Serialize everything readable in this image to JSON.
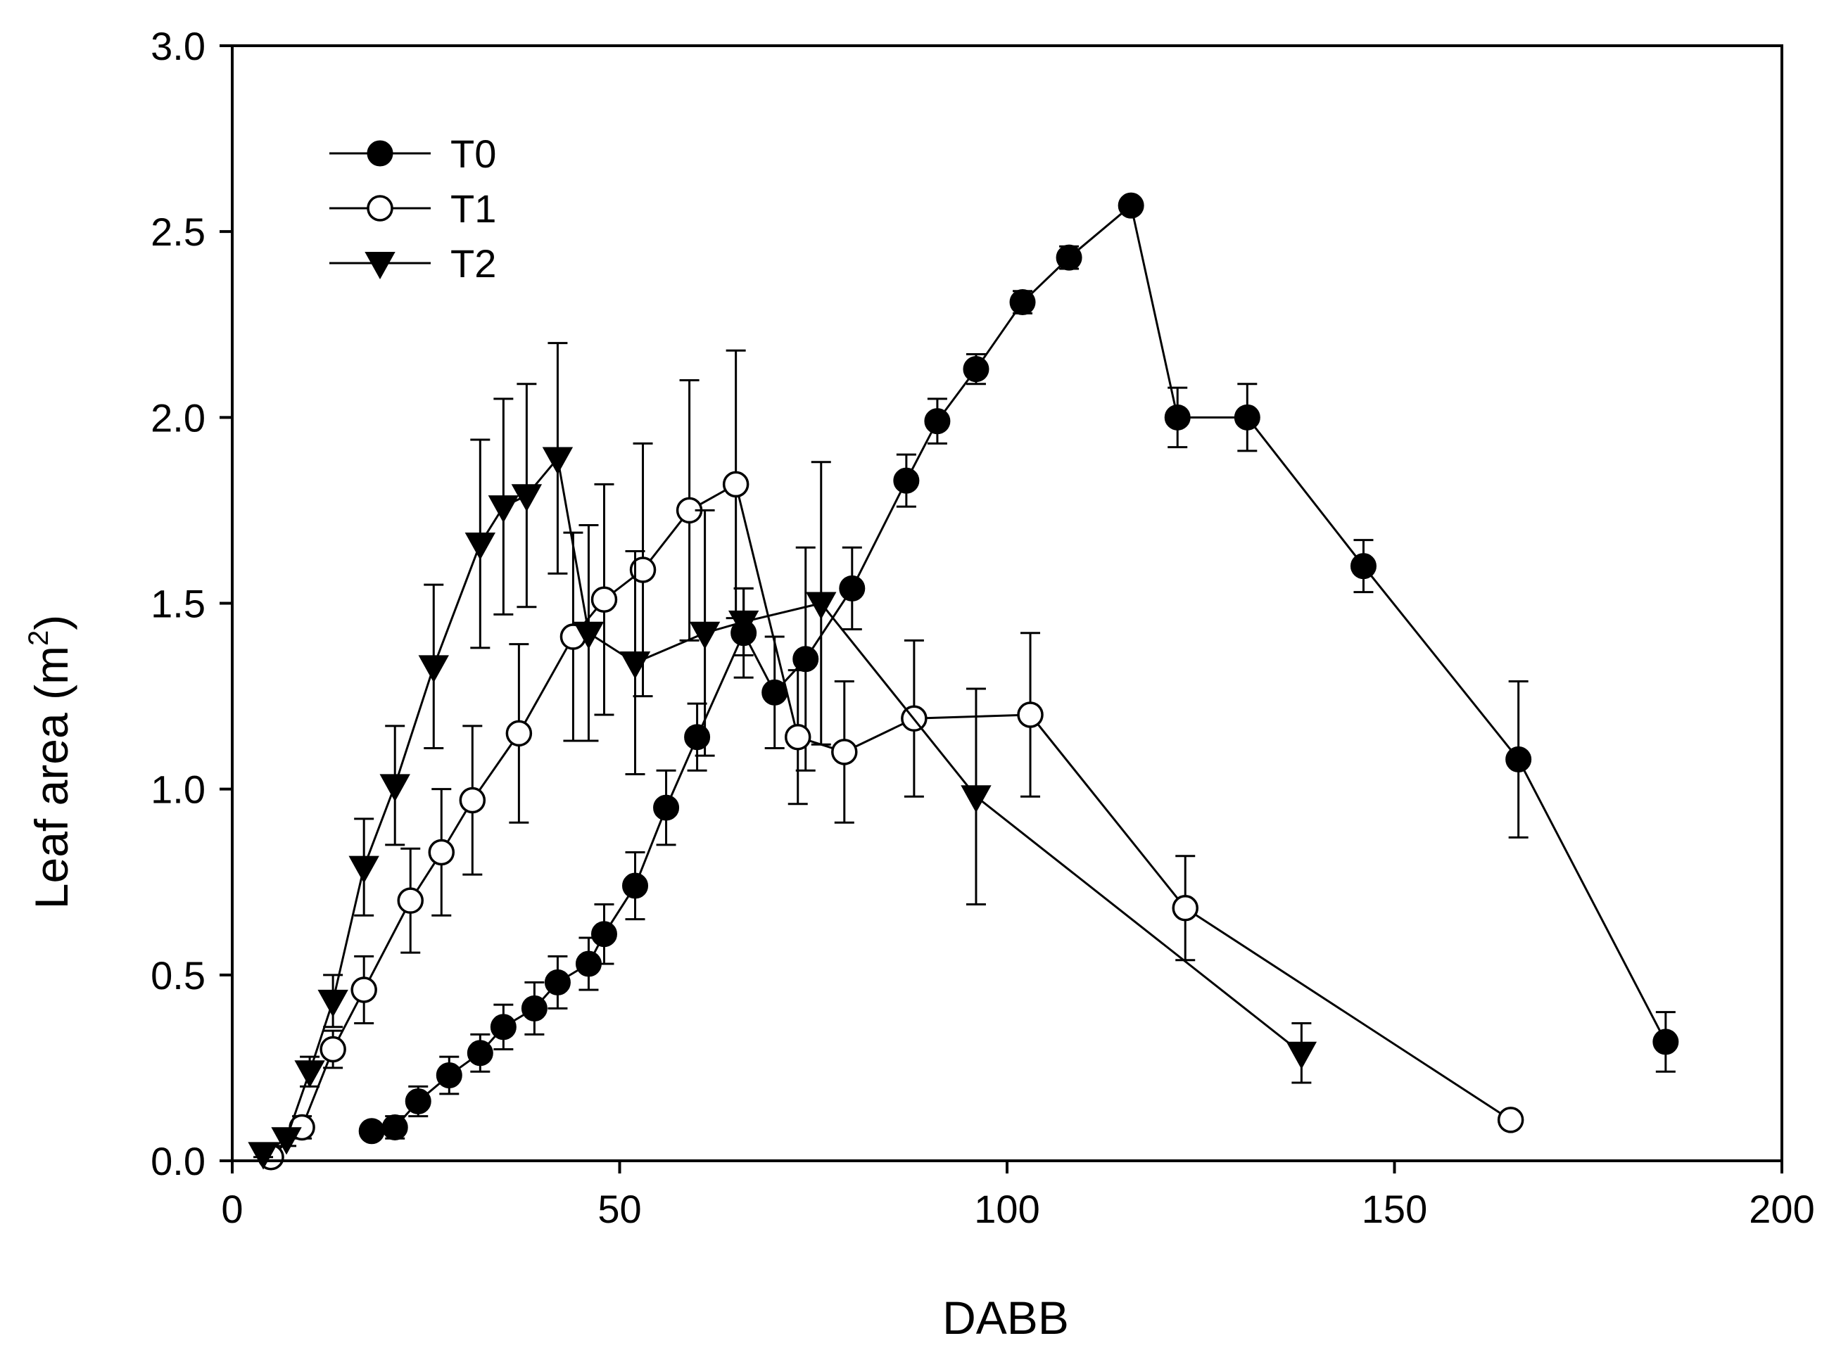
{
  "chart_data": {
    "type": "line",
    "title": "",
    "xlabel": "DABB",
    "ylabel": "Leaf area (m",
    "ylabel_superscript": "2",
    "ylabel_suffix": ")",
    "xlim": [
      0,
      200
    ],
    "ylim": [
      0.0,
      3.0
    ],
    "x_ticks": [
      0,
      50,
      100,
      150,
      200
    ],
    "x_tick_labels": [
      "0",
      "50",
      "100",
      "150",
      "200"
    ],
    "y_ticks": [
      0.0,
      0.5,
      1.0,
      1.5,
      2.0,
      2.5,
      3.0
    ],
    "y_tick_labels": [
      "0.0",
      "0.5",
      "1.0",
      "1.5",
      "2.0",
      "2.5",
      "3.0"
    ],
    "grid": false,
    "legend_position": "top-left",
    "series": [
      {
        "name": "T0",
        "marker": "filled-circle",
        "x": [
          18,
          21,
          24,
          28,
          32,
          35,
          39,
          42,
          46,
          48,
          52,
          56,
          60,
          66,
          70,
          74,
          80,
          87,
          91,
          96,
          102,
          108,
          116,
          122,
          131,
          146,
          166,
          185
        ],
        "y": [
          0.08,
          0.09,
          0.16,
          0.23,
          0.29,
          0.36,
          0.41,
          0.48,
          0.53,
          0.61,
          0.74,
          0.95,
          1.14,
          1.42,
          1.26,
          1.35,
          1.54,
          1.83,
          1.99,
          2.13,
          2.31,
          2.43,
          2.57,
          2.0,
          2.0,
          1.6,
          1.08,
          0.32
        ],
        "err": [
          0.02,
          0.03,
          0.04,
          0.05,
          0.05,
          0.06,
          0.07,
          0.07,
          0.07,
          0.08,
          0.09,
          0.1,
          0.09,
          0.12,
          0.15,
          0.3,
          0.11,
          0.07,
          0.06,
          0.04,
          0.03,
          0.03,
          0.02,
          0.08,
          0.09,
          0.07,
          0.21,
          0.08
        ]
      },
      {
        "name": "T1",
        "marker": "open-circle",
        "x": [
          5,
          9,
          13,
          17,
          23,
          27,
          31,
          37,
          44,
          48,
          53,
          59,
          65,
          73,
          79,
          88,
          103,
          123,
          165
        ],
        "y": [
          0.01,
          0.09,
          0.3,
          0.46,
          0.7,
          0.83,
          0.97,
          1.15,
          1.41,
          1.51,
          1.59,
          1.75,
          1.82,
          1.14,
          1.1,
          1.19,
          1.2,
          0.68,
          0.11
        ],
        "err": [
          0.01,
          0.03,
          0.05,
          0.09,
          0.14,
          0.17,
          0.2,
          0.24,
          0.28,
          0.31,
          0.34,
          0.35,
          0.36,
          0.18,
          0.19,
          0.21,
          0.22,
          0.14,
          0.02
        ]
      },
      {
        "name": "T2",
        "marker": "filled-triangle-down",
        "x": [
          4,
          7,
          10,
          13,
          17,
          21,
          26,
          32,
          35,
          38,
          42,
          46,
          52,
          61,
          66,
          76,
          96,
          138
        ],
        "y": [
          0.02,
          0.06,
          0.24,
          0.43,
          0.79,
          1.01,
          1.33,
          1.66,
          1.76,
          1.79,
          1.89,
          1.42,
          1.34,
          1.42,
          1.45,
          1.5,
          0.98,
          0.29
        ],
        "err": [
          0.01,
          0.02,
          0.04,
          0.07,
          0.13,
          0.16,
          0.22,
          0.28,
          0.29,
          0.3,
          0.31,
          0.29,
          0.3,
          0.33,
          0.09,
          0.38,
          0.29,
          0.08
        ]
      }
    ]
  }
}
